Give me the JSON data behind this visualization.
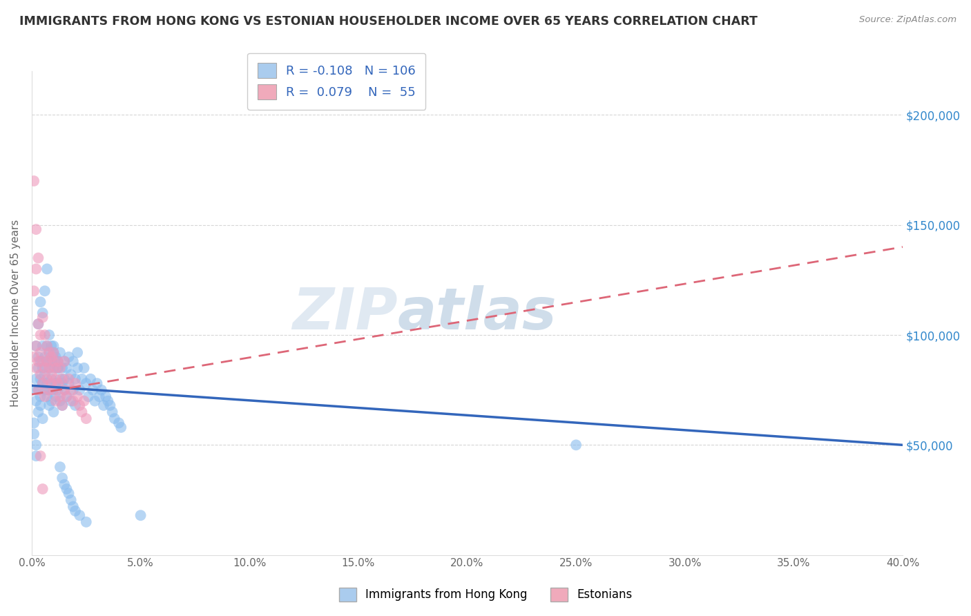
{
  "title": "IMMIGRANTS FROM HONG KONG VS ESTONIAN HOUSEHOLDER INCOME OVER 65 YEARS CORRELATION CHART",
  "source": "Source: ZipAtlas.com",
  "ylabel": "Householder Income Over 65 years",
  "xlim": [
    0.0,
    0.4
  ],
  "ylim": [
    0,
    220000
  ],
  "yticks": [
    50000,
    100000,
    150000,
    200000
  ],
  "ytick_labels": [
    "$50,000",
    "$100,000",
    "$150,000",
    "$200,000"
  ],
  "legend1_color": "#aaccee",
  "legend2_color": "#f0aabb",
  "legend1_label": "Immigrants from Hong Kong",
  "legend2_label": "Estonians",
  "R1": "-0.108",
  "N1": "106",
  "R2": "0.079",
  "N2": "55",
  "line1_color": "#3366bb",
  "line2_color": "#dd6677",
  "line2_dash": [
    6,
    4
  ],
  "watermark_zip": "ZIP",
  "watermark_atlas": "atlas",
  "bg_color": "#ffffff",
  "scatter1_color": "#88bbee",
  "scatter2_color": "#ee99bb",
  "line1_y0": 77000,
  "line1_y1": 50000,
  "line2_y0": 73000,
  "line2_y1": 140000,
  "scatter1_x": [
    0.001,
    0.002,
    0.002,
    0.002,
    0.003,
    0.003,
    0.003,
    0.003,
    0.004,
    0.004,
    0.004,
    0.004,
    0.005,
    0.005,
    0.005,
    0.005,
    0.006,
    0.006,
    0.006,
    0.007,
    0.007,
    0.007,
    0.007,
    0.008,
    0.008,
    0.008,
    0.008,
    0.009,
    0.009,
    0.009,
    0.01,
    0.01,
    0.01,
    0.01,
    0.011,
    0.011,
    0.011,
    0.012,
    0.012,
    0.012,
    0.013,
    0.013,
    0.013,
    0.014,
    0.014,
    0.014,
    0.015,
    0.015,
    0.015,
    0.016,
    0.016,
    0.017,
    0.017,
    0.018,
    0.018,
    0.019,
    0.019,
    0.02,
    0.02,
    0.021,
    0.021,
    0.022,
    0.023,
    0.024,
    0.025,
    0.026,
    0.027,
    0.028,
    0.029,
    0.03,
    0.031,
    0.032,
    0.033,
    0.034,
    0.035,
    0.036,
    0.037,
    0.038,
    0.04,
    0.041,
    0.001,
    0.001,
    0.002,
    0.002,
    0.003,
    0.004,
    0.005,
    0.006,
    0.007,
    0.008,
    0.009,
    0.01,
    0.011,
    0.012,
    0.013,
    0.014,
    0.015,
    0.016,
    0.017,
    0.018,
    0.019,
    0.02,
    0.022,
    0.025,
    0.25,
    0.05
  ],
  "scatter1_y": [
    75000,
    80000,
    70000,
    95000,
    85000,
    75000,
    65000,
    90000,
    80000,
    72000,
    88000,
    68000,
    95000,
    78000,
    85000,
    62000,
    90000,
    75000,
    82000,
    88000,
    72000,
    95000,
    78000,
    85000,
    68000,
    92000,
    75000,
    80000,
    88000,
    70000,
    95000,
    75000,
    85000,
    65000,
    90000,
    78000,
    72000,
    85000,
    88000,
    75000,
    80000,
    70000,
    92000,
    85000,
    78000,
    68000,
    88000,
    75000,
    80000,
    85000,
    72000,
    90000,
    78000,
    82000,
    70000,
    88000,
    75000,
    80000,
    68000,
    85000,
    92000,
    75000,
    80000,
    85000,
    78000,
    72000,
    80000,
    75000,
    70000,
    78000,
    72000,
    75000,
    68000,
    72000,
    70000,
    68000,
    65000,
    62000,
    60000,
    58000,
    60000,
    55000,
    50000,
    45000,
    105000,
    115000,
    110000,
    120000,
    130000,
    100000,
    95000,
    92000,
    88000,
    85000,
    40000,
    35000,
    32000,
    30000,
    28000,
    25000,
    22000,
    20000,
    18000,
    15000,
    50000,
    18000
  ],
  "scatter2_x": [
    0.001,
    0.001,
    0.002,
    0.002,
    0.002,
    0.003,
    0.003,
    0.003,
    0.004,
    0.004,
    0.004,
    0.005,
    0.005,
    0.005,
    0.006,
    0.006,
    0.006,
    0.007,
    0.007,
    0.007,
    0.008,
    0.008,
    0.008,
    0.009,
    0.009,
    0.009,
    0.01,
    0.01,
    0.01,
    0.011,
    0.011,
    0.011,
    0.012,
    0.012,
    0.013,
    0.013,
    0.014,
    0.014,
    0.015,
    0.015,
    0.016,
    0.017,
    0.018,
    0.019,
    0.02,
    0.021,
    0.022,
    0.023,
    0.024,
    0.025,
    0.001,
    0.002,
    0.003,
    0.004,
    0.005
  ],
  "scatter2_y": [
    90000,
    120000,
    85000,
    95000,
    130000,
    105000,
    88000,
    75000,
    100000,
    82000,
    92000,
    108000,
    78000,
    88000,
    100000,
    85000,
    72000,
    95000,
    80000,
    88000,
    85000,
    92000,
    75000,
    90000,
    78000,
    82000,
    88000,
    75000,
    92000,
    80000,
    85000,
    70000,
    78000,
    88000,
    85000,
    72000,
    80000,
    68000,
    88000,
    75000,
    72000,
    80000,
    75000,
    70000,
    78000,
    72000,
    68000,
    65000,
    70000,
    62000,
    170000,
    148000,
    135000,
    45000,
    30000
  ]
}
